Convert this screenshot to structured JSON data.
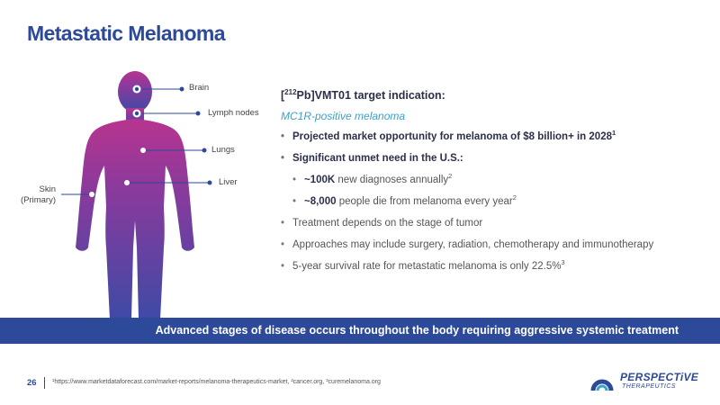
{
  "title": "Metastatic Melanoma",
  "figure": {
    "labels": {
      "brain": "Brain",
      "lymph": "Lymph nodes",
      "lungs": "Lungs",
      "liver": "Liver",
      "skin_line1": "Skin",
      "skin_line2": "(Primary)"
    },
    "colors": {
      "top": "#b8348f",
      "bottom": "#3f4aa6"
    }
  },
  "content": {
    "heading_prefix": "[",
    "heading_sup": "212",
    "heading_rest": "Pb]VMT01 target indication:",
    "subheading": "MC1R-positive melanoma",
    "bullets": [
      {
        "text": "Projected market opportunity for melanoma of $8 billion+ in 2028",
        "sup": "1"
      },
      {
        "text": "Significant unmet need in the U.S.:",
        "sup": ""
      },
      {
        "value": "~100K",
        "text": " new diagnoses annually",
        "sup": "2"
      },
      {
        "value": "~8,000",
        "text": " people die from melanoma every year",
        "sup": "2"
      },
      {
        "text": "Treatment depends on the stage of tumor"
      },
      {
        "text": "Approaches may include surgery, radiation, chemotherapy and immunotherapy"
      },
      {
        "text": "5-year survival rate for metastatic melanoma is only 22.5%",
        "sup": "3"
      }
    ]
  },
  "banner": "Advanced stages of disease occurs throughout the body requiring aggressive systemic treatment",
  "footer": {
    "page_number": "26",
    "footnote": "¹https://www.marketdataforecast.com/market-reports/melanoma-therapeutics-market, ²cancer.org, ³curemelanoma.org"
  },
  "logo": {
    "name": "PERSPECTiVE",
    "tagline": "THERAPEUTICS"
  },
  "colors": {
    "brand": "#2d4a9a",
    "accent": "#3aa2c9"
  }
}
